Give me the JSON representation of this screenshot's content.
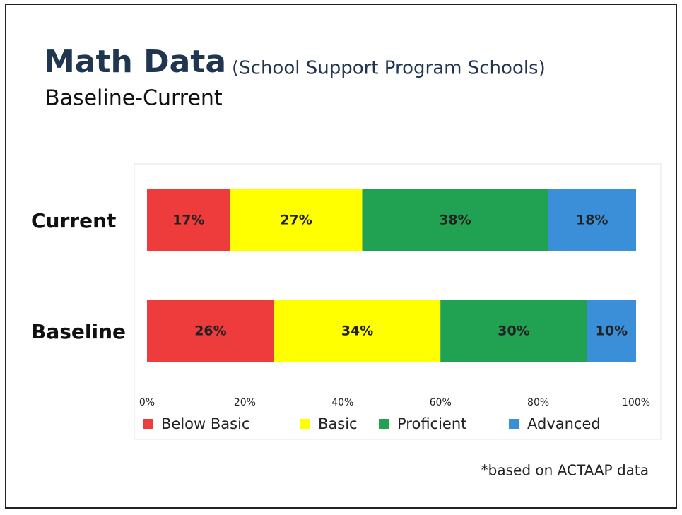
{
  "chart_data": {
    "type": "stacked_bar_horizontal",
    "title": "Math Data",
    "subtitle": "(School Support Program Schools)",
    "subtitle2": "Baseline-Current",
    "annotation": "*based on ACTAAP data",
    "categories": [
      "Current",
      "Baseline"
    ],
    "series": [
      {
        "name": "Below Basic",
        "color": "#ee3b3b",
        "values": [
          17,
          26
        ],
        "value_labels": [
          "17%",
          "26%"
        ]
      },
      {
        "name": "Basic",
        "color": "#ffff00",
        "values": [
          27,
          34
        ],
        "value_labels": [
          "27%",
          "34%"
        ]
      },
      {
        "name": "Proficient",
        "color": "#21a152",
        "values": [
          38,
          30
        ],
        "value_labels": [
          "38%",
          "30%"
        ]
      },
      {
        "name": "Advanced",
        "color": "#3b8ed8",
        "values": [
          18,
          10
        ],
        "value_labels": [
          "18%",
          "10%"
        ]
      }
    ],
    "xlim": [
      0,
      100
    ],
    "xticks": [
      {
        "value": 0,
        "label": "0%"
      },
      {
        "value": 20,
        "label": "20%"
      },
      {
        "value": 40,
        "label": "40%"
      },
      {
        "value": 60,
        "label": "60%"
      },
      {
        "value": 80,
        "label": "80%"
      },
      {
        "value": 100,
        "label": "100%"
      }
    ],
    "legend": "bottom"
  }
}
